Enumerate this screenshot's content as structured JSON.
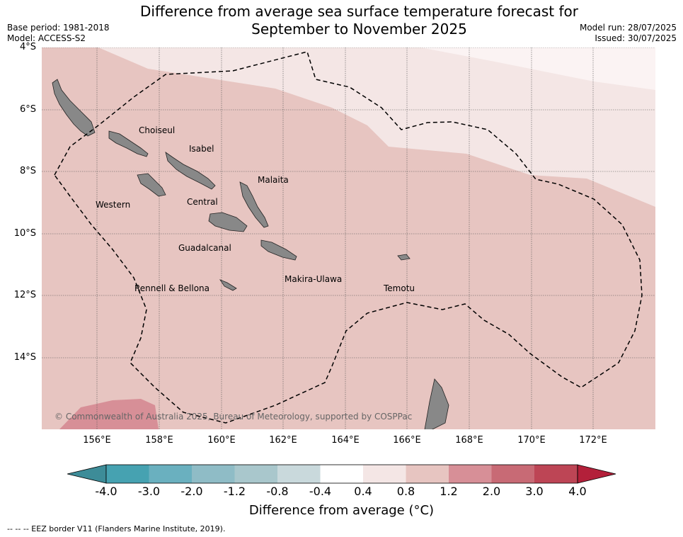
{
  "header": {
    "title_line1": "Difference from average sea surface temperature forecast for",
    "title_line2": "September to November 2025",
    "base_period": "Base period: 1981-2018",
    "model": "Model: ACCESS-S2",
    "model_run": "Model run: 28/07/2025",
    "issued": "Issued: 30/07/2025"
  },
  "map": {
    "lat_labels": [
      "4°S",
      "6°S",
      "8°S",
      "10°S",
      "12°S",
      "14°S"
    ],
    "lon_labels": [
      "156°E",
      "158°E",
      "160°E",
      "162°E",
      "164°E",
      "166°E",
      "168°E",
      "170°E",
      "172°E"
    ],
    "provinces": [
      {
        "name": "Choiseul"
      },
      {
        "name": "Isabel"
      },
      {
        "name": "Malaita"
      },
      {
        "name": "Western"
      },
      {
        "name": "Central"
      },
      {
        "name": "Guadalcanal"
      },
      {
        "name": "Makira-Ulawa"
      },
      {
        "name": "Rennell & Bellona"
      },
      {
        "name": "Temotu"
      }
    ],
    "copyright": "© Commonwealth of Australia 2025, Bureau of Meteorology, supported by COSPPac",
    "colors": {
      "band_0_4_0_8": "#f4e6e5",
      "band_0_8_1_2": "#e7c5c1",
      "band_1_2_2_0": "#d78f97",
      "land": "#888888"
    }
  },
  "colorbar": {
    "labels": [
      "-4.0",
      "-3.0",
      "-2.0",
      "-1.2",
      "-0.8",
      "-0.4",
      "0.4",
      "0.8",
      "1.2",
      "2.0",
      "3.0",
      "4.0"
    ],
    "colors": [
      "#3d8c98",
      "#46a2b1",
      "#6ab0bf",
      "#8fbcc6",
      "#a9c7cc",
      "#c9d9dc",
      "#ffffff",
      "#f4e6e5",
      "#e7c5c1",
      "#d78f97",
      "#c86a75",
      "#bd4555",
      "#b3203a"
    ],
    "title": "Difference from average (°C)"
  },
  "footnote": "--  --  -- EEZ border V11 (Flanders Marine Institute, 2019)."
}
